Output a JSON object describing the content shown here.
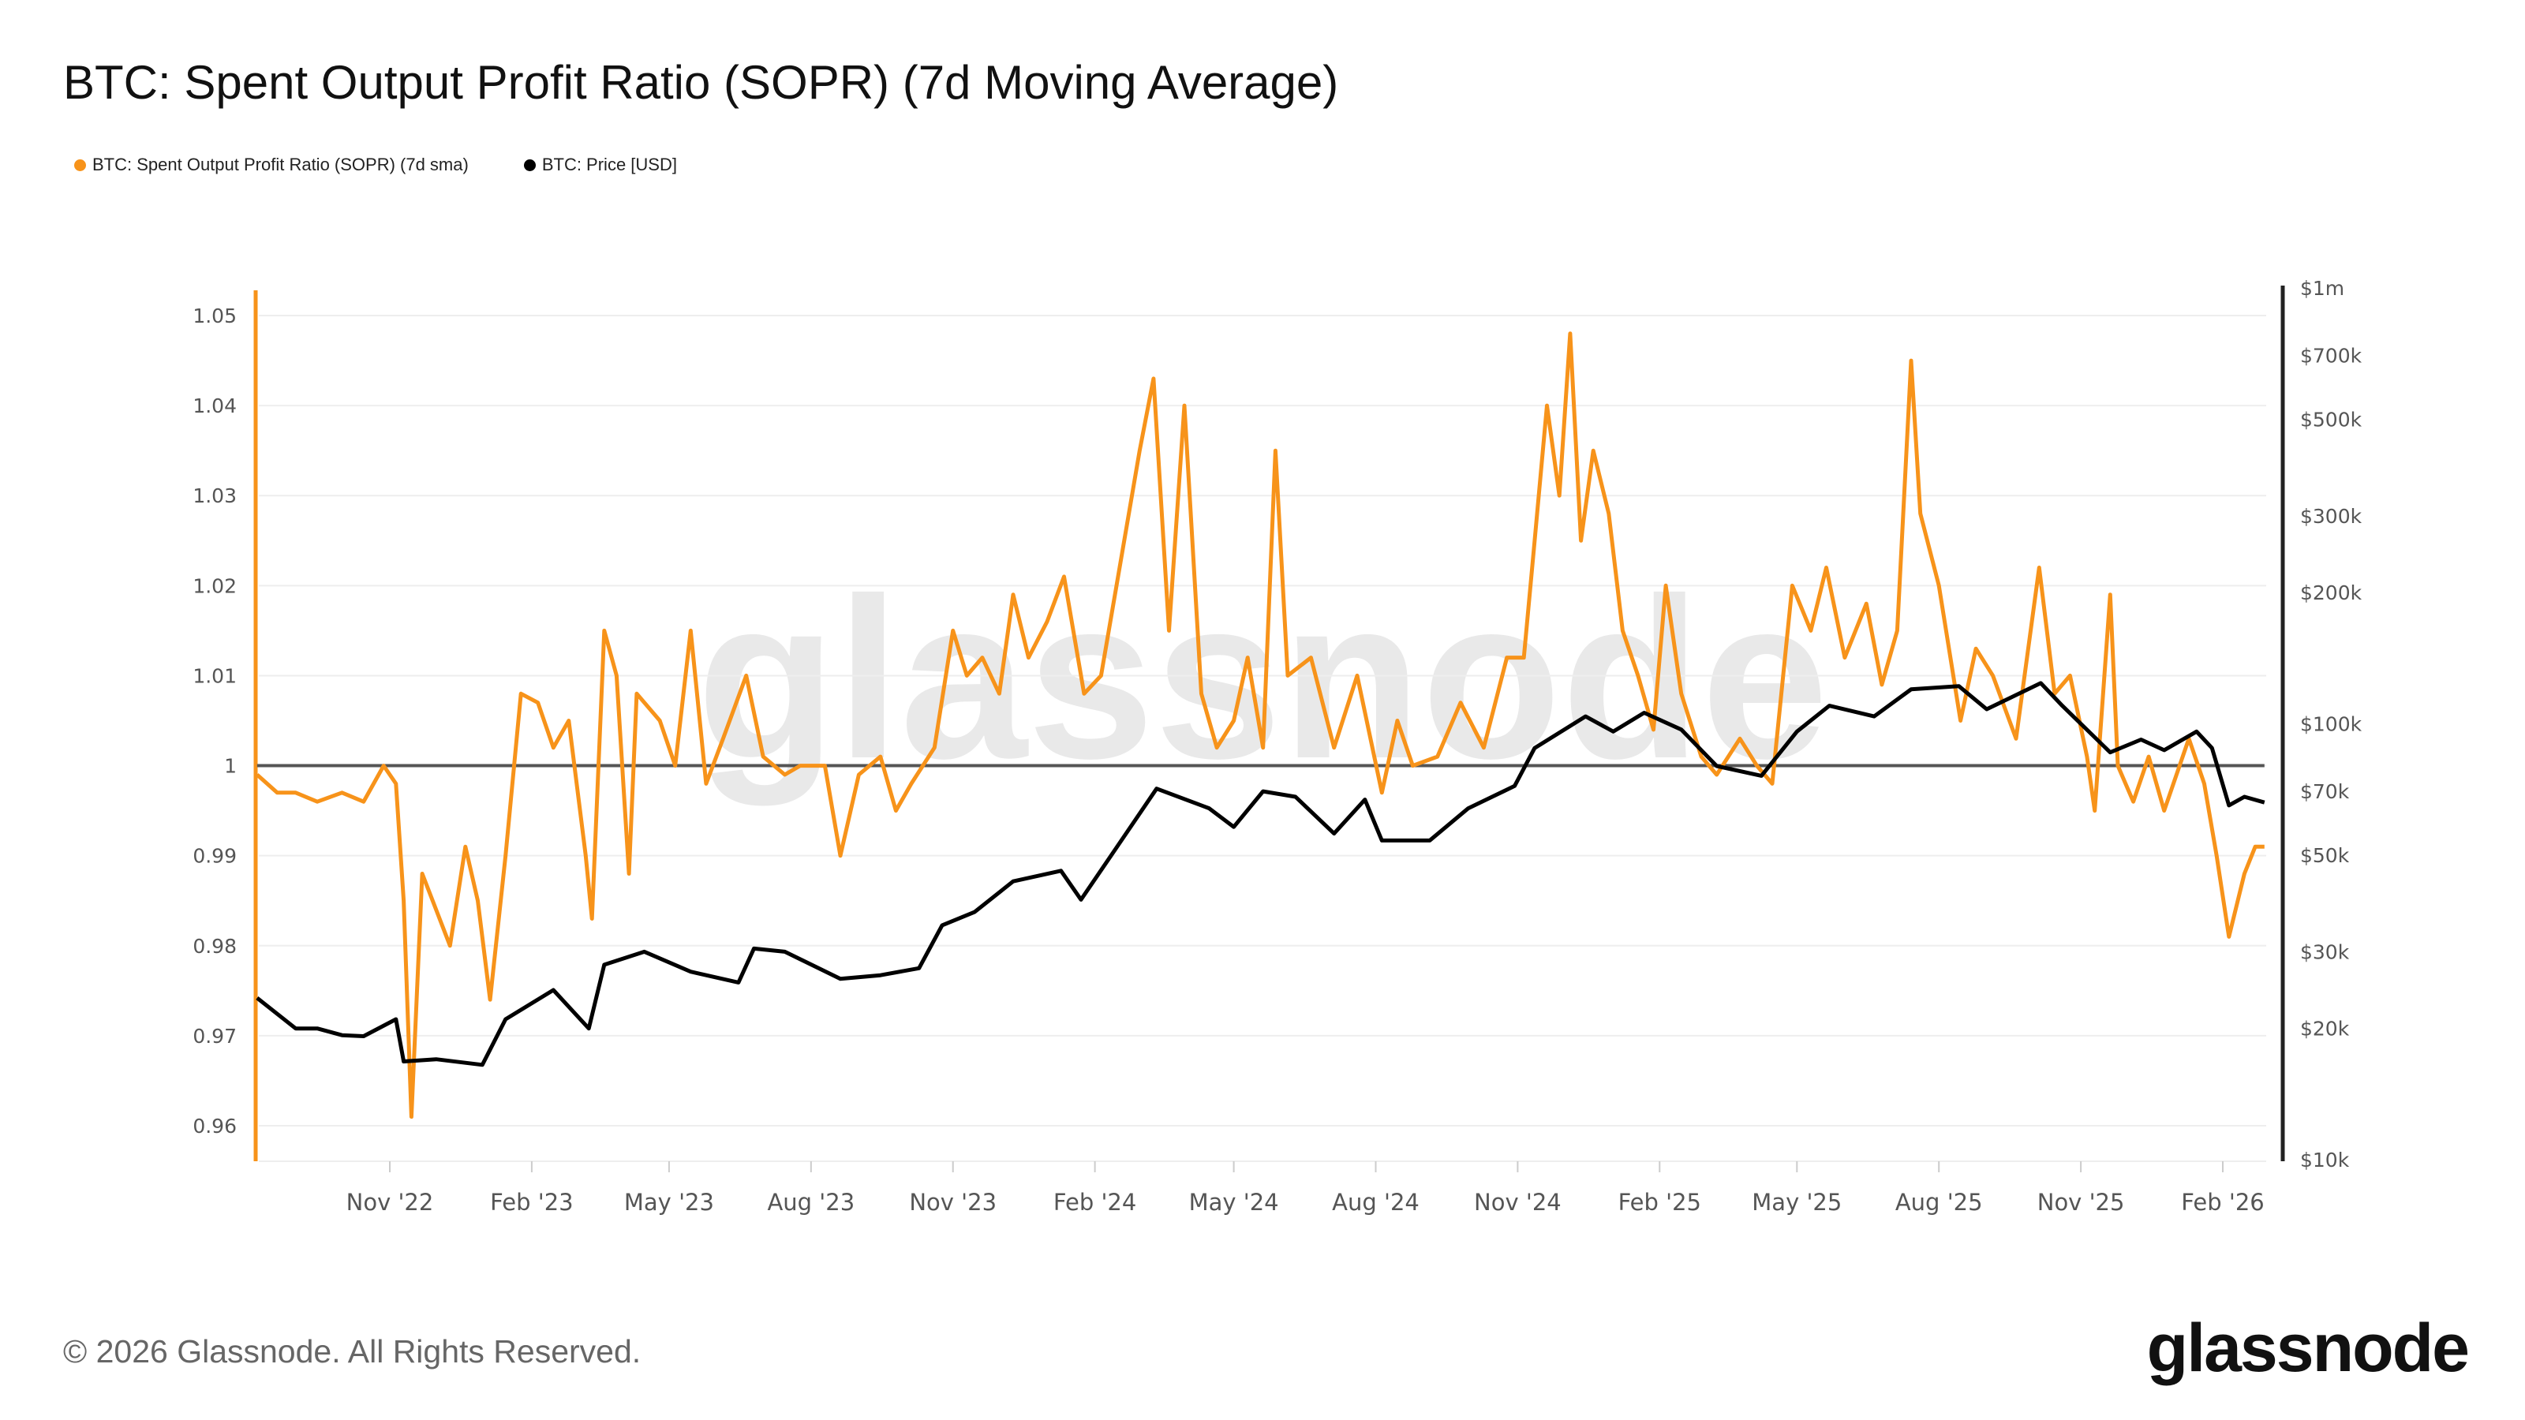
{
  "title": "BTC: Spent Output Profit Ratio (SOPR) (7d Moving Average)",
  "footer": "© 2026 Glassnode. All Rights Reserved.",
  "logo": "glassnode",
  "watermark": "glassnode",
  "chart_data": {
    "type": "line",
    "title": "BTC: Spent Output Profit Ratio (SOPR) (7d Moving Average)",
    "legend_position": "top-left",
    "grid": true,
    "x_ticks": [
      "Nov '22",
      "Feb '23",
      "May '23",
      "Aug '23",
      "Nov '23",
      "Feb '24",
      "May '24",
      "Aug '24",
      "Nov '24",
      "Feb '25",
      "May '25",
      "Aug '25",
      "Nov '25",
      "Feb '26"
    ],
    "x_tick_dates": [
      "2022-11-01",
      "2023-02-01",
      "2023-05-01",
      "2023-08-01",
      "2023-11-01",
      "2024-02-01",
      "2024-05-01",
      "2024-08-01",
      "2024-11-01",
      "2025-02-01",
      "2025-05-01",
      "2025-08-01",
      "2025-11-01",
      "2026-02-01"
    ],
    "y_left": {
      "ticks": [
        "1.05",
        "1.04",
        "1.03",
        "1.02",
        "1.01",
        "1",
        "0.99",
        "0.98",
        "0.97",
        "0.96"
      ],
      "range": [
        0.956,
        1.052
      ],
      "reference_line": 1
    },
    "y_right": {
      "scale": "log",
      "ticks": [
        "$1m",
        "$700k",
        "$500k",
        "$300k",
        "$200k",
        "$100k",
        "$70k",
        "$50k",
        "$30k",
        "$20k",
        "$10k"
      ],
      "tick_values": [
        1000000,
        700000,
        500000,
        300000,
        200000,
        100000,
        70000,
        50000,
        30000,
        20000,
        10000
      ],
      "range": [
        10000,
        1000000
      ]
    },
    "series": [
      {
        "name": "BTC: Spent Output Profit Ratio (SOPR) (7d sma)",
        "color": "#f7931a",
        "axis": "left",
        "x": [
          "2022-08-07",
          "2022-08-20",
          "2022-09-01",
          "2022-09-15",
          "2022-10-01",
          "2022-10-15",
          "2022-10-28",
          "2022-11-05",
          "2022-11-10",
          "2022-11-15",
          "2022-11-22",
          "2022-12-01",
          "2022-12-10",
          "2022-12-20",
          "2022-12-28",
          "2023-01-05",
          "2023-01-15",
          "2023-01-25",
          "2023-02-05",
          "2023-02-15",
          "2023-02-25",
          "2023-03-08",
          "2023-03-12",
          "2023-03-20",
          "2023-03-28",
          "2023-04-05",
          "2023-04-10",
          "2023-04-25",
          "2023-05-05",
          "2023-05-15",
          "2023-05-25",
          "2023-06-05",
          "2023-06-20",
          "2023-07-01",
          "2023-07-15",
          "2023-07-25",
          "2023-08-10",
          "2023-08-20",
          "2023-09-01",
          "2023-09-15",
          "2023-09-25",
          "2023-10-05",
          "2023-10-20",
          "2023-11-01",
          "2023-11-10",
          "2023-11-20",
          "2023-12-01",
          "2023-12-10",
          "2023-12-20",
          "2024-01-01",
          "2024-01-12",
          "2024-01-25",
          "2024-02-05",
          "2024-02-15",
          "2024-03-01",
          "2024-03-10",
          "2024-03-20",
          "2024-03-30",
          "2024-04-10",
          "2024-04-20",
          "2024-05-01",
          "2024-05-10",
          "2024-05-20",
          "2024-05-28",
          "2024-06-05",
          "2024-06-20",
          "2024-07-05",
          "2024-07-20",
          "2024-08-05",
          "2024-08-15",
          "2024-08-25",
          "2024-09-10",
          "2024-09-25",
          "2024-10-10",
          "2024-10-25",
          "2024-11-05",
          "2024-11-12",
          "2024-11-20",
          "2024-11-28",
          "2024-12-05",
          "2024-12-12",
          "2024-12-20",
          "2024-12-30",
          "2025-01-08",
          "2025-01-18",
          "2025-01-28",
          "2025-02-05",
          "2025-02-15",
          "2025-02-28",
          "2025-03-10",
          "2025-03-25",
          "2025-04-05",
          "2025-04-15",
          "2025-04-28",
          "2025-05-10",
          "2025-05-20",
          "2025-06-01",
          "2025-06-15",
          "2025-06-25",
          "2025-07-05",
          "2025-07-14",
          "2025-07-20",
          "2025-08-01",
          "2025-08-15",
          "2025-08-25",
          "2025-09-05",
          "2025-09-20",
          "2025-10-05",
          "2025-10-15",
          "2025-10-25",
          "2025-11-05",
          "2025-11-10",
          "2025-11-20",
          "2025-11-25",
          "2025-12-05",
          "2025-12-15",
          "2025-12-25",
          "2026-01-10",
          "2026-01-20",
          "2026-01-28",
          "2026-02-05",
          "2026-02-15",
          "2026-02-22",
          "2026-02-28"
        ],
        "values": [
          0.999,
          0.997,
          0.997,
          0.996,
          0.997,
          0.996,
          1.0,
          0.998,
          0.985,
          0.961,
          0.988,
          0.984,
          0.98,
          0.991,
          0.985,
          0.974,
          0.99,
          1.008,
          1.007,
          1.002,
          1.005,
          0.99,
          0.983,
          1.015,
          1.01,
          0.988,
          1.008,
          1.005,
          1.0,
          1.015,
          0.998,
          1.003,
          1.01,
          1.001,
          0.999,
          1.0,
          1.0,
          0.99,
          0.999,
          1.001,
          0.995,
          0.998,
          1.002,
          1.015,
          1.01,
          1.012,
          1.008,
          1.019,
          1.012,
          1.016,
          1.021,
          1.008,
          1.01,
          1.02,
          1.035,
          1.043,
          1.015,
          1.04,
          1.008,
          1.002,
          1.005,
          1.012,
          1.002,
          1.035,
          1.01,
          1.012,
          1.002,
          1.01,
          0.997,
          1.005,
          1.0,
          1.001,
          1.007,
          1.002,
          1.012,
          1.012,
          1.025,
          1.04,
          1.03,
          1.048,
          1.025,
          1.035,
          1.028,
          1.015,
          1.01,
          1.004,
          1.02,
          1.008,
          1.001,
          0.999,
          1.003,
          1.0,
          0.998,
          1.02,
          1.015,
          1.022,
          1.012,
          1.018,
          1.009,
          1.015,
          1.045,
          1.028,
          1.02,
          1.005,
          1.013,
          1.01,
          1.003,
          1.022,
          1.008,
          1.01,
          1.001,
          0.995,
          1.019,
          1.0,
          0.996,
          1.001,
          0.995,
          1.003,
          0.998,
          0.99,
          0.981,
          0.988,
          0.991,
          0.991
        ]
      },
      {
        "name": "BTC: Price [USD]",
        "color": "#000000",
        "axis": "right",
        "x": [
          "2022-08-07",
          "2022-09-01",
          "2022-09-15",
          "2022-10-01",
          "2022-10-15",
          "2022-11-05",
          "2022-11-10",
          "2022-12-01",
          "2022-12-31",
          "2023-01-15",
          "2023-02-15",
          "2023-03-10",
          "2023-03-20",
          "2023-04-15",
          "2023-05-15",
          "2023-06-15",
          "2023-06-25",
          "2023-07-15",
          "2023-08-20",
          "2023-09-15",
          "2023-10-10",
          "2023-10-25",
          "2023-11-15",
          "2023-12-10",
          "2024-01-10",
          "2024-01-23",
          "2024-02-15",
          "2024-03-12",
          "2024-04-15",
          "2024-05-01",
          "2024-05-20",
          "2024-06-10",
          "2024-07-05",
          "2024-07-25",
          "2024-08-05",
          "2024-09-05",
          "2024-09-30",
          "2024-10-30",
          "2024-11-12",
          "2024-12-15",
          "2025-01-02",
          "2025-01-22",
          "2025-02-15",
          "2025-03-10",
          "2025-04-08",
          "2025-05-01",
          "2025-05-22",
          "2025-06-20",
          "2025-07-14",
          "2025-08-14",
          "2025-09-01",
          "2025-10-06",
          "2025-10-20",
          "2025-11-20",
          "2025-12-10",
          "2025-12-25",
          "2026-01-15",
          "2026-01-25",
          "2026-02-05",
          "2026-02-15",
          "2026-02-28"
        ],
        "values": [
          23500,
          20000,
          20000,
          19300,
          19200,
          21000,
          16800,
          17000,
          16500,
          21000,
          24500,
          20000,
          28000,
          30000,
          27000,
          25500,
          30500,
          30000,
          26000,
          26500,
          27500,
          34500,
          37000,
          43500,
          46000,
          39500,
          52000,
          71000,
          64000,
          58000,
          70000,
          68000,
          56000,
          67000,
          54000,
          54000,
          64000,
          72000,
          88000,
          104000,
          96000,
          106000,
          97000,
          80000,
          76000,
          96000,
          110000,
          104000,
          120000,
          122000,
          108000,
          124000,
          110000,
          86000,
          92000,
          87000,
          96000,
          88000,
          65000,
          68000,
          66000
        ]
      }
    ]
  }
}
